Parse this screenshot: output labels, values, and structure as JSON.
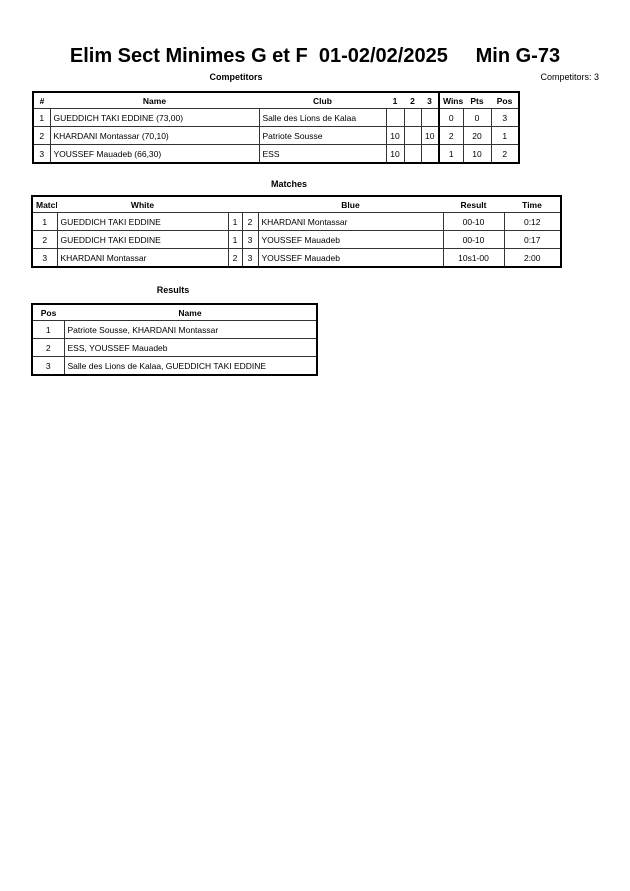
{
  "title": "Elim Sect Minimes G et F  01-02/02/2025     Min G-73",
  "competitors": {
    "heading": "Competitors",
    "count_label": "Competitors: 3",
    "headers": [
      "#",
      "Name",
      "Club",
      "1",
      "2",
      "3",
      "Wins",
      "Pts",
      "Pos"
    ],
    "rows": [
      [
        "1",
        "GUEDDICH TAKI EDDINE  (73,00)",
        "Salle des Lions de Kalaa",
        "",
        "",
        "",
        "0",
        "0",
        "3"
      ],
      [
        "2",
        "KHARDANI Montassar  (70,10)",
        "Patriote Sousse",
        "10",
        "",
        "10",
        "2",
        "20",
        "1"
      ],
      [
        "3",
        "YOUSSEF Mauadeb  (66,30)",
        "ESS",
        "10",
        "",
        "",
        "1",
        "10",
        "2"
      ]
    ]
  },
  "matches": {
    "heading": "Matches",
    "headers": [
      "Match",
      "White",
      "",
      "",
      "Blue",
      "Result",
      "Time"
    ],
    "rows": [
      [
        "1",
        "GUEDDICH TAKI EDDINE",
        "1",
        "2",
        "KHARDANI Montassar",
        "00-10",
        "0:12"
      ],
      [
        "2",
        "GUEDDICH TAKI EDDINE",
        "1",
        "3",
        "YOUSSEF Mauadeb",
        "00-10",
        "0:17"
      ],
      [
        "3",
        "KHARDANI Montassar",
        "2",
        "3",
        "YOUSSEF Mauadeb",
        "10s1-00",
        "2:00"
      ]
    ]
  },
  "results": {
    "heading": "Results",
    "headers": [
      "Pos",
      "Name"
    ],
    "rows": [
      [
        "1",
        "Patriote Sousse, KHARDANI Montassar"
      ],
      [
        "2",
        "ESS, YOUSSEF Mauadeb"
      ],
      [
        "3",
        "Salle des Lions de Kalaa, GUEDDICH TAKI EDDINE"
      ]
    ]
  }
}
